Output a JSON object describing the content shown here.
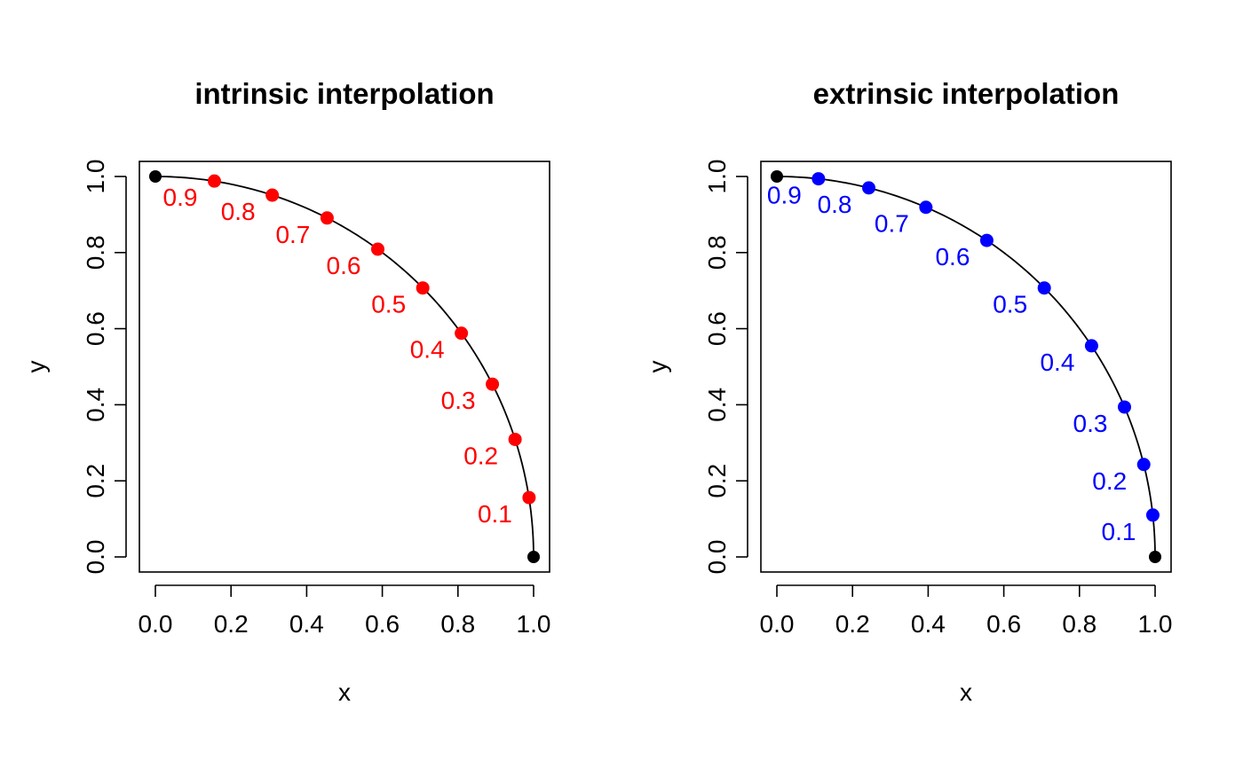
{
  "chart_data": [
    {
      "type": "scatter",
      "title": "intrinsic interpolation",
      "xlabel": "x",
      "ylabel": "y",
      "xlim": [
        0,
        1
      ],
      "ylim": [
        0,
        1
      ],
      "xticks": [
        "0.0",
        "0.2",
        "0.4",
        "0.6",
        "0.8",
        "1.0"
      ],
      "yticks": [
        "0.0",
        "0.2",
        "0.4",
        "0.6",
        "0.8",
        "1.0"
      ],
      "point_color": "#ff0000",
      "endpoint_color": "#000000",
      "curve": "quarter unit circle",
      "endpoints": [
        {
          "x": 0,
          "y": 1
        },
        {
          "x": 1,
          "y": 0
        }
      ],
      "points": [
        {
          "label": "0.9",
          "x": 0.156,
          "y": 0.988
        },
        {
          "label": "0.8",
          "x": 0.309,
          "y": 0.951
        },
        {
          "label": "0.7",
          "x": 0.454,
          "y": 0.891
        },
        {
          "label": "0.6",
          "x": 0.588,
          "y": 0.809
        },
        {
          "label": "0.5",
          "x": 0.707,
          "y": 0.707
        },
        {
          "label": "0.4",
          "x": 0.809,
          "y": 0.588
        },
        {
          "label": "0.3",
          "x": 0.891,
          "y": 0.454
        },
        {
          "label": "0.2",
          "x": 0.951,
          "y": 0.309
        },
        {
          "label": "0.1",
          "x": 0.988,
          "y": 0.156
        }
      ]
    },
    {
      "type": "scatter",
      "title": "extrinsic interpolation",
      "xlabel": "x",
      "ylabel": "y",
      "xlim": [
        0,
        1
      ],
      "ylim": [
        0,
        1
      ],
      "xticks": [
        "0.0",
        "0.2",
        "0.4",
        "0.6",
        "0.8",
        "1.0"
      ],
      "yticks": [
        "0.0",
        "0.2",
        "0.4",
        "0.6",
        "0.8",
        "1.0"
      ],
      "point_color": "#0000ff",
      "endpoint_color": "#000000",
      "curve": "quarter unit circle",
      "endpoints": [
        {
          "x": 0,
          "y": 1
        },
        {
          "x": 1,
          "y": 0
        }
      ],
      "points": [
        {
          "label": "0.9",
          "x": 0.11,
          "y": 0.994
        },
        {
          "label": "0.8",
          "x": 0.243,
          "y": 0.97
        },
        {
          "label": "0.7",
          "x": 0.394,
          "y": 0.919
        },
        {
          "label": "0.6",
          "x": 0.555,
          "y": 0.832
        },
        {
          "label": "0.5",
          "x": 0.707,
          "y": 0.707
        },
        {
          "label": "0.4",
          "x": 0.832,
          "y": 0.555
        },
        {
          "label": "0.3",
          "x": 0.919,
          "y": 0.394
        },
        {
          "label": "0.2",
          "x": 0.97,
          "y": 0.243
        },
        {
          "label": "0.1",
          "x": 0.994,
          "y": 0.11
        }
      ]
    }
  ]
}
